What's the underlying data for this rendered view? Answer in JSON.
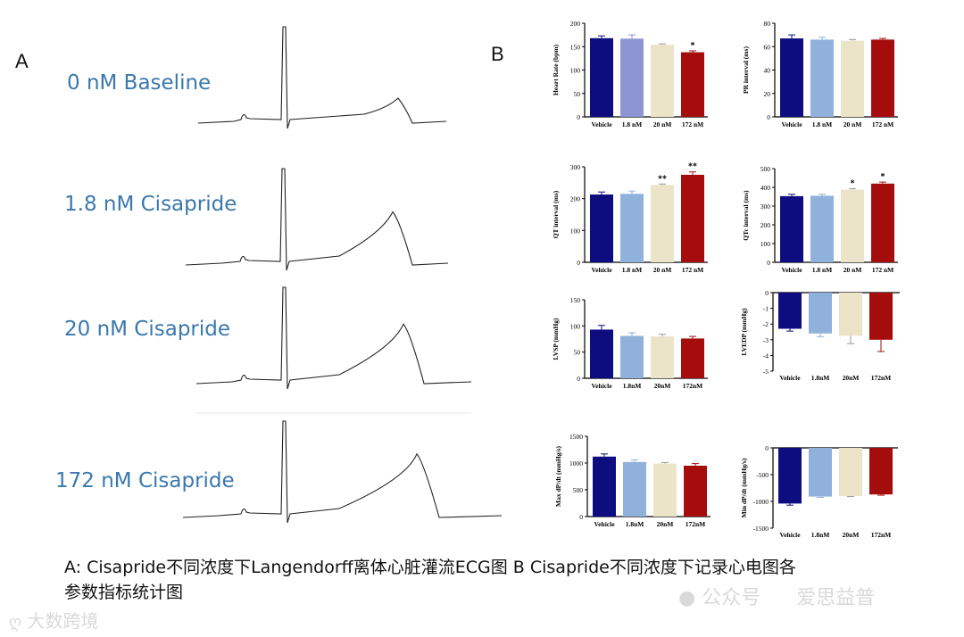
{
  "panel_a_letter": "A",
  "panel_b_letter": "B",
  "ecg": {
    "traces": [
      {
        "label": "0 nM Baseline",
        "t_wave_peak": 0.2
      },
      {
        "label": "1.8 nM Cisapride",
        "t_wave_peak": 0.55
      },
      {
        "label": "20 nM Cisapride",
        "t_wave_peak": 0.63
      },
      {
        "label": "172 nM Cisapride",
        "t_wave_peak": 0.68
      }
    ]
  },
  "colors": {
    "vehicle": "#0d0d80",
    "c1_8": "#8e95d4",
    "c1_8_light": "#8fb1dc",
    "c20": "#ece4c8",
    "c172": "#a50d0d",
    "ecg_label": "#3a78ad"
  },
  "chart_data": [
    {
      "type": "bar",
      "ylabel": "Heart Rate (bpm)",
      "categories": [
        "Vehicle",
        "1.8 nM",
        "20 nM",
        "172 nM"
      ],
      "values": [
        168,
        167,
        154,
        138
      ],
      "errors": [
        5,
        8,
        2,
        3
      ],
      "ylim": [
        0,
        200
      ],
      "ticks": [
        0,
        50,
        100,
        150,
        200
      ],
      "significance": [
        "",
        "",
        "",
        "*"
      ],
      "second_color": "c1_8"
    },
    {
      "type": "bar",
      "ylabel": "PR interval (ms)",
      "categories": [
        "Vehicle",
        "1.8 nM",
        "20 nM",
        "172 nM"
      ],
      "values": [
        67,
        66,
        65,
        66
      ],
      "errors": [
        3,
        2,
        1,
        1
      ],
      "ylim": [
        0,
        80
      ],
      "ticks": [
        0,
        20,
        40,
        60,
        80
      ],
      "significance": [
        "",
        "",
        "",
        ""
      ],
      "second_color": "c1_8_light"
    },
    {
      "type": "bar",
      "ylabel": "QT interval (ms)",
      "categories": [
        "Vehicle",
        "1.8 nM",
        "20 nM",
        "172 nM"
      ],
      "values": [
        213,
        215,
        243,
        275
      ],
      "errors": [
        8,
        9,
        3,
        9
      ],
      "ylim": [
        0,
        300
      ],
      "ticks": [
        0,
        100,
        200,
        300
      ],
      "significance": [
        "",
        "",
        "**",
        "**"
      ],
      "second_color": "c1_8_light"
    },
    {
      "type": "bar",
      "ylabel": "QTc interval (ms)",
      "categories": [
        "Vehicle",
        "1.8 nM",
        "20 nM",
        "172 nM"
      ],
      "values": [
        353,
        355,
        388,
        420
      ],
      "errors": [
        10,
        8,
        5,
        8
      ],
      "ylim": [
        0,
        500
      ],
      "ticks": [
        0,
        100,
        200,
        300,
        400,
        500
      ],
      "significance": [
        "",
        "",
        "*",
        "*"
      ],
      "second_color": "c1_8_light"
    },
    {
      "type": "bar",
      "ylabel": "LVSP (mmHg)",
      "categories": [
        "Vehicle",
        "1.8nM",
        "20nM",
        "172nM"
      ],
      "values": [
        93,
        81,
        80,
        76
      ],
      "errors": [
        8,
        6,
        4,
        4
      ],
      "ylim": [
        0,
        150
      ],
      "ticks": [
        0,
        50,
        100,
        150
      ],
      "significance": [
        "",
        "",
        "",
        ""
      ],
      "second_color": "c1_8_light"
    },
    {
      "type": "bar",
      "ylabel": "LVEDP (mmHg)",
      "categories": [
        "Vehicle",
        "1.8nM",
        "20nM",
        "172nM"
      ],
      "values": [
        -2.3,
        -2.6,
        -2.75,
        -3.0
      ],
      "errors": [
        0.15,
        0.2,
        0.5,
        0.75
      ],
      "ylim": [
        -5,
        0
      ],
      "ticks": [
        0,
        -1,
        -2,
        -3,
        -4,
        -5
      ],
      "significance": [
        "",
        "",
        "",
        ""
      ],
      "second_color": "c1_8_light"
    },
    {
      "type": "bar",
      "ylabel": "Max dP/dt (mmHg/s)",
      "categories": [
        "Vehicle",
        "1.8nM",
        "20nM",
        "172nM"
      ],
      "values": [
        1120,
        1020,
        990,
        950
      ],
      "errors": [
        50,
        40,
        20,
        40
      ],
      "ylim": [
        0,
        1500
      ],
      "ticks": [
        0,
        500,
        1000,
        1500
      ],
      "significance": [
        "",
        "",
        "",
        ""
      ],
      "second_color": "c1_8_light"
    },
    {
      "type": "bar",
      "ylabel": "Min dP/dt (mmHg/s)",
      "categories": [
        "Vehicle",
        "1.8nM",
        "20nM",
        "172nM"
      ],
      "values": [
        -1040,
        -910,
        -900,
        -870
      ],
      "errors": [
        30,
        15,
        10,
        15
      ],
      "ylim": [
        -1500,
        0
      ],
      "ticks": [
        0,
        -500,
        -1000,
        -1500
      ],
      "significance": [
        "",
        "",
        "",
        ""
      ],
      "second_color": "c1_8_light"
    }
  ],
  "caption": {
    "line1": "A: Cisapride不同浓度下Langendorff离体心脏灌流ECG图   B Cisapride不同浓度下记录心电图各",
    "line2": "参数指标统计图"
  },
  "watermarks": {
    "bottom_left": "大数跨境",
    "bottom_right_1": "公众号",
    "bottom_right_2": "爱思益普"
  }
}
